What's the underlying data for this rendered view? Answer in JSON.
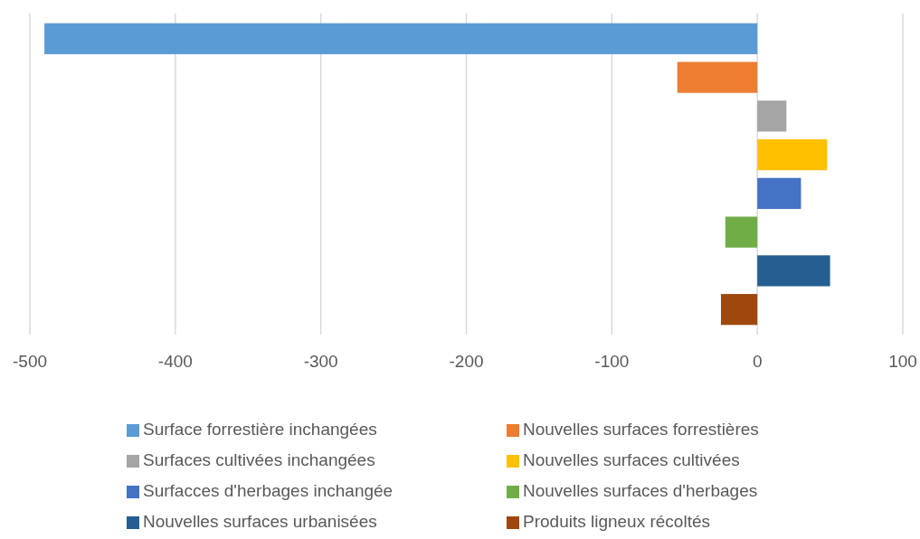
{
  "chart_data": {
    "type": "bar",
    "orientation": "horizontal",
    "categories": [
      null,
      null,
      null,
      null,
      null,
      null,
      null,
      null
    ],
    "series": [
      {
        "name": "Surface forrestière inchangées",
        "color": "#5b9bd5",
        "values": [
          -490,
          null,
          null,
          null,
          null,
          null,
          null,
          null
        ]
      },
      {
        "name": "Nouvelles surfaces forrestières",
        "color": "#ed7d31",
        "values": [
          null,
          -55,
          null,
          null,
          null,
          null,
          null,
          null
        ]
      },
      {
        "name": "Surfaces cultivées inchangées",
        "color": "#a5a5a5",
        "values": [
          null,
          null,
          20,
          null,
          null,
          null,
          null,
          null
        ]
      },
      {
        "name": "Nouvelles surfaces cultivées",
        "color": "#ffc000",
        "values": [
          null,
          null,
          null,
          48,
          null,
          null,
          null,
          null
        ]
      },
      {
        "name": "Surfacces d'herbages inchangée",
        "color": "#4472c4",
        "values": [
          null,
          null,
          null,
          null,
          30,
          null,
          null,
          null
        ]
      },
      {
        "name": "Nouvelles surfaces d'herbages",
        "color": "#70ad47",
        "values": [
          null,
          null,
          null,
          null,
          null,
          -22,
          null,
          null
        ]
      },
      {
        "name": "Nouvelles surfaces urbanisées",
        "color": "#255e91",
        "values": [
          null,
          null,
          null,
          null,
          null,
          null,
          50,
          null
        ]
      },
      {
        "name": "Produits ligneux récoltés",
        "color": "#9e480e",
        "values": [
          null,
          null,
          null,
          null,
          null,
          null,
          null,
          -25
        ]
      }
    ],
    "xlim": [
      -500,
      100
    ],
    "xticks": [
      -500,
      -400,
      -300,
      -200,
      -100,
      0,
      100
    ],
    "grid": "x",
    "legend": "bottom",
    "tick_labels": "x"
  }
}
